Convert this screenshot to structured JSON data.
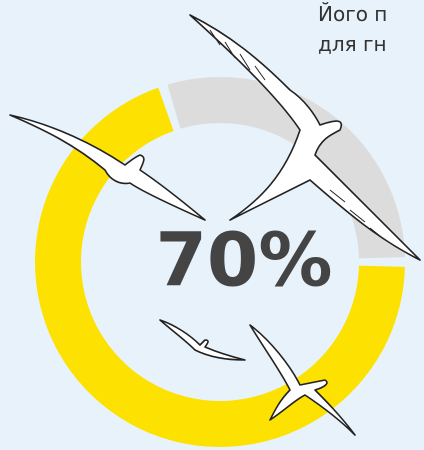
{
  "caption": {
    "line1": "Його п",
    "line2": "для гн"
  },
  "chart_data": {
    "type": "donut",
    "values": [
      70,
      30
    ],
    "value_labels": [
      "70%",
      null
    ],
    "colors": [
      "#fde100",
      "#dcdcdc"
    ]
  }
}
